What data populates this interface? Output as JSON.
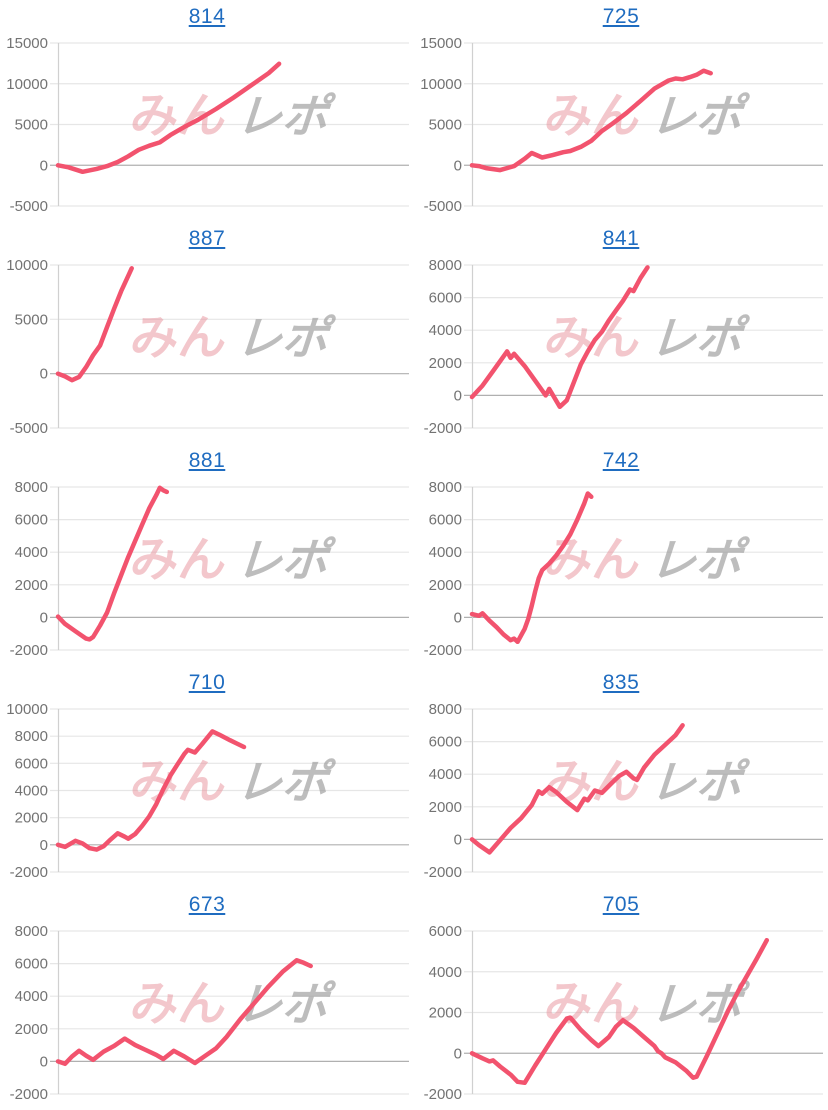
{
  "page": {
    "background": "#ffffff"
  },
  "watermark": {
    "pink_text": "みん",
    "gray_text": "レポ"
  },
  "style": {
    "line_color": "#f2536e",
    "title_color": "#1f6cc0",
    "tick_label_color": "#737373",
    "grid_color": "#e6e6e6",
    "zero_line_color": "#b0b0b0",
    "axis_line_color": "#d0d0d0",
    "watermark_pink": "#e8919b",
    "watermark_gray": "#9a9a9a"
  },
  "chart_data": [
    {
      "type": "line",
      "title": "814",
      "ylim": [
        -5000,
        15000
      ],
      "yticks": [
        15000,
        10000,
        5000,
        0,
        -5000
      ],
      "x_range_pct": [
        0,
        100
      ],
      "points": [
        [
          0,
          0
        ],
        [
          3,
          -250
        ],
        [
          7,
          -800
        ],
        [
          11,
          -450
        ],
        [
          14,
          -100
        ],
        [
          17,
          400
        ],
        [
          20,
          1100
        ],
        [
          23,
          1900
        ],
        [
          26,
          2400
        ],
        [
          29,
          2800
        ],
        [
          32,
          3700
        ],
        [
          36,
          4700
        ],
        [
          40,
          5600
        ],
        [
          45,
          6900
        ],
        [
          50,
          8300
        ],
        [
          55,
          9800
        ],
        [
          60,
          11300
        ],
        [
          63,
          12450
        ]
      ]
    },
    {
      "type": "line",
      "title": "725",
      "ylim": [
        -5000,
        15000
      ],
      "yticks": [
        15000,
        10000,
        5000,
        0,
        -5000
      ],
      "x_range_pct": [
        0,
        100
      ],
      "points": [
        [
          0,
          0
        ],
        [
          2,
          -100
        ],
        [
          4,
          -350
        ],
        [
          8,
          -600
        ],
        [
          12,
          -100
        ],
        [
          15,
          800
        ],
        [
          17,
          1500
        ],
        [
          20,
          950
        ],
        [
          23,
          1250
        ],
        [
          26,
          1600
        ],
        [
          28,
          1750
        ],
        [
          31,
          2250
        ],
        [
          34,
          3000
        ],
        [
          37,
          4200
        ],
        [
          40,
          5100
        ],
        [
          44,
          6400
        ],
        [
          48,
          7900
        ],
        [
          52,
          9400
        ],
        [
          56,
          10400
        ],
        [
          58,
          10650
        ],
        [
          60,
          10550
        ],
        [
          62,
          10800
        ],
        [
          64,
          11100
        ],
        [
          66,
          11600
        ],
        [
          68,
          11300
        ]
      ]
    },
    {
      "type": "line",
      "title": "887",
      "ylim": [
        -5000,
        10000
      ],
      "yticks": [
        10000,
        5000,
        0,
        -5000
      ],
      "x_range_pct": [
        0,
        100
      ],
      "points": [
        [
          0,
          0
        ],
        [
          2,
          -250
        ],
        [
          4,
          -600
        ],
        [
          6,
          -300
        ],
        [
          8,
          600
        ],
        [
          10,
          1700
        ],
        [
          12,
          2600
        ],
        [
          14,
          4300
        ],
        [
          16,
          6000
        ],
        [
          18,
          7600
        ],
        [
          20,
          9000
        ],
        [
          21,
          9700
        ]
      ]
    },
    {
      "type": "line",
      "title": "841",
      "ylim": [
        -2000,
        8000
      ],
      "yticks": [
        8000,
        6000,
        4000,
        2000,
        0,
        -2000
      ],
      "x_range_pct": [
        0,
        100
      ],
      "points": [
        [
          0,
          -100
        ],
        [
          3,
          600
        ],
        [
          6,
          1500
        ],
        [
          10,
          2700
        ],
        [
          11,
          2300
        ],
        [
          12,
          2550
        ],
        [
          15,
          1800
        ],
        [
          18,
          900
        ],
        [
          20,
          300
        ],
        [
          21,
          0
        ],
        [
          22,
          400
        ],
        [
          25,
          -700
        ],
        [
          27,
          -300
        ],
        [
          29,
          800
        ],
        [
          31,
          1900
        ],
        [
          33,
          2700
        ],
        [
          35,
          3400
        ],
        [
          37,
          3900
        ],
        [
          39,
          4600
        ],
        [
          41,
          5200
        ],
        [
          43,
          5800
        ],
        [
          45,
          6500
        ],
        [
          46,
          6400
        ],
        [
          48,
          7200
        ],
        [
          50,
          7850
        ]
      ]
    },
    {
      "type": "line",
      "title": "881",
      "ylim": [
        -2000,
        8000
      ],
      "yticks": [
        8000,
        6000,
        4000,
        2000,
        0,
        -2000
      ],
      "x_range_pct": [
        0,
        100
      ],
      "points": [
        [
          0,
          50
        ],
        [
          2,
          -400
        ],
        [
          5,
          -850
        ],
        [
          8,
          -1300
        ],
        [
          9,
          -1350
        ],
        [
          10,
          -1200
        ],
        [
          12,
          -500
        ],
        [
          14,
          300
        ],
        [
          16,
          1500
        ],
        [
          18,
          2600
        ],
        [
          20,
          3700
        ],
        [
          22,
          4700
        ],
        [
          24,
          5700
        ],
        [
          26,
          6700
        ],
        [
          28,
          7500
        ],
        [
          29,
          7950
        ],
        [
          30,
          7800
        ],
        [
          31,
          7700
        ]
      ]
    },
    {
      "type": "line",
      "title": "742",
      "ylim": [
        -2000,
        8000
      ],
      "yticks": [
        8000,
        6000,
        4000,
        2000,
        0,
        -2000
      ],
      "x_range_pct": [
        0,
        100
      ],
      "points": [
        [
          0,
          200
        ],
        [
          2,
          100
        ],
        [
          3,
          250
        ],
        [
          5,
          -200
        ],
        [
          7,
          -600
        ],
        [
          9,
          -1050
        ],
        [
          11,
          -1400
        ],
        [
          12,
          -1300
        ],
        [
          13,
          -1500
        ],
        [
          15,
          -700
        ],
        [
          16,
          -100
        ],
        [
          17,
          700
        ],
        [
          18,
          1600
        ],
        [
          19,
          2400
        ],
        [
          20,
          2900
        ],
        [
          22,
          3300
        ],
        [
          24,
          3800
        ],
        [
          26,
          4400
        ],
        [
          28,
          5100
        ],
        [
          30,
          6000
        ],
        [
          32,
          7000
        ],
        [
          33,
          7600
        ],
        [
          34,
          7400
        ]
      ]
    },
    {
      "type": "line",
      "title": "710",
      "ylim": [
        -2000,
        10000
      ],
      "yticks": [
        10000,
        8000,
        6000,
        4000,
        2000,
        0,
        -2000
      ],
      "x_range_pct": [
        0,
        100
      ],
      "points": [
        [
          0,
          0
        ],
        [
          2,
          -150
        ],
        [
          5,
          300
        ],
        [
          7,
          100
        ],
        [
          9,
          -250
        ],
        [
          11,
          -350
        ],
        [
          13,
          -100
        ],
        [
          15,
          400
        ],
        [
          17,
          850
        ],
        [
          19,
          600
        ],
        [
          20,
          450
        ],
        [
          22,
          800
        ],
        [
          24,
          1400
        ],
        [
          26,
          2100
        ],
        [
          28,
          3000
        ],
        [
          30,
          4100
        ],
        [
          32,
          5100
        ],
        [
          34,
          5900
        ],
        [
          36,
          6700
        ],
        [
          37,
          7000
        ],
        [
          39,
          6800
        ],
        [
          41,
          7400
        ],
        [
          44,
          8350
        ],
        [
          46,
          8100
        ],
        [
          49,
          7700
        ],
        [
          51,
          7450
        ],
        [
          53,
          7200
        ]
      ]
    },
    {
      "type": "line",
      "title": "835",
      "ylim": [
        -2000,
        8000
      ],
      "yticks": [
        8000,
        6000,
        4000,
        2000,
        0,
        -2000
      ],
      "x_range_pct": [
        0,
        100
      ],
      "points": [
        [
          0,
          0
        ],
        [
          2,
          -350
        ],
        [
          5,
          -800
        ],
        [
          8,
          -50
        ],
        [
          11,
          700
        ],
        [
          14,
          1300
        ],
        [
          17,
          2100
        ],
        [
          19,
          2950
        ],
        [
          20,
          2800
        ],
        [
          22,
          3200
        ],
        [
          24,
          2900
        ],
        [
          27,
          2300
        ],
        [
          30,
          1800
        ],
        [
          32,
          2500
        ],
        [
          33,
          2400
        ],
        [
          35,
          3000
        ],
        [
          37,
          2850
        ],
        [
          40,
          3500
        ],
        [
          42,
          3900
        ],
        [
          44,
          4150
        ],
        [
          46,
          3750
        ],
        [
          47,
          3650
        ],
        [
          49,
          4400
        ],
        [
          52,
          5200
        ],
        [
          55,
          5800
        ],
        [
          58,
          6400
        ],
        [
          60,
          7000
        ]
      ]
    },
    {
      "type": "line",
      "title": "673",
      "ylim": [
        -2000,
        8000
      ],
      "yticks": [
        8000,
        6000,
        4000,
        2000,
        0,
        -2000
      ],
      "x_range_pct": [
        0,
        100
      ],
      "points": [
        [
          0,
          0
        ],
        [
          2,
          -150
        ],
        [
          4,
          300
        ],
        [
          6,
          650
        ],
        [
          8,
          350
        ],
        [
          10,
          100
        ],
        [
          13,
          600
        ],
        [
          16,
          950
        ],
        [
          19,
          1400
        ],
        [
          22,
          1000
        ],
        [
          25,
          700
        ],
        [
          28,
          400
        ],
        [
          30,
          150
        ],
        [
          33,
          650
        ],
        [
          36,
          300
        ],
        [
          39,
          -100
        ],
        [
          42,
          350
        ],
        [
          45,
          800
        ],
        [
          48,
          1500
        ],
        [
          52,
          2600
        ],
        [
          56,
          3600
        ],
        [
          60,
          4600
        ],
        [
          64,
          5500
        ],
        [
          68,
          6200
        ],
        [
          70,
          6050
        ],
        [
          72,
          5850
        ]
      ]
    },
    {
      "type": "line",
      "title": "705",
      "ylim": [
        -2000,
        6000
      ],
      "yticks": [
        6000,
        4000,
        2000,
        0,
        -2000
      ],
      "x_range_pct": [
        0,
        100
      ],
      "points": [
        [
          0,
          0
        ],
        [
          3,
          -250
        ],
        [
          5,
          -400
        ],
        [
          6,
          -350
        ],
        [
          8,
          -650
        ],
        [
          11,
          -1050
        ],
        [
          13,
          -1400
        ],
        [
          15,
          -1450
        ],
        [
          18,
          -600
        ],
        [
          21,
          200
        ],
        [
          24,
          1000
        ],
        [
          27,
          1700
        ],
        [
          28,
          1750
        ],
        [
          31,
          1150
        ],
        [
          34,
          650
        ],
        [
          36,
          350
        ],
        [
          39,
          800
        ],
        [
          41,
          1300
        ],
        [
          43,
          1620
        ],
        [
          46,
          1250
        ],
        [
          49,
          800
        ],
        [
          52,
          350
        ],
        [
          53,
          100
        ],
        [
          54,
          0
        ],
        [
          55,
          -200
        ],
        [
          58,
          -450
        ],
        [
          61,
          -850
        ],
        [
          63,
          -1200
        ],
        [
          64,
          -1150
        ],
        [
          67,
          -100
        ],
        [
          70,
          1000
        ],
        [
          73,
          2100
        ],
        [
          76,
          3100
        ],
        [
          79,
          4000
        ],
        [
          81,
          4600
        ],
        [
          84,
          5550
        ]
      ]
    }
  ]
}
